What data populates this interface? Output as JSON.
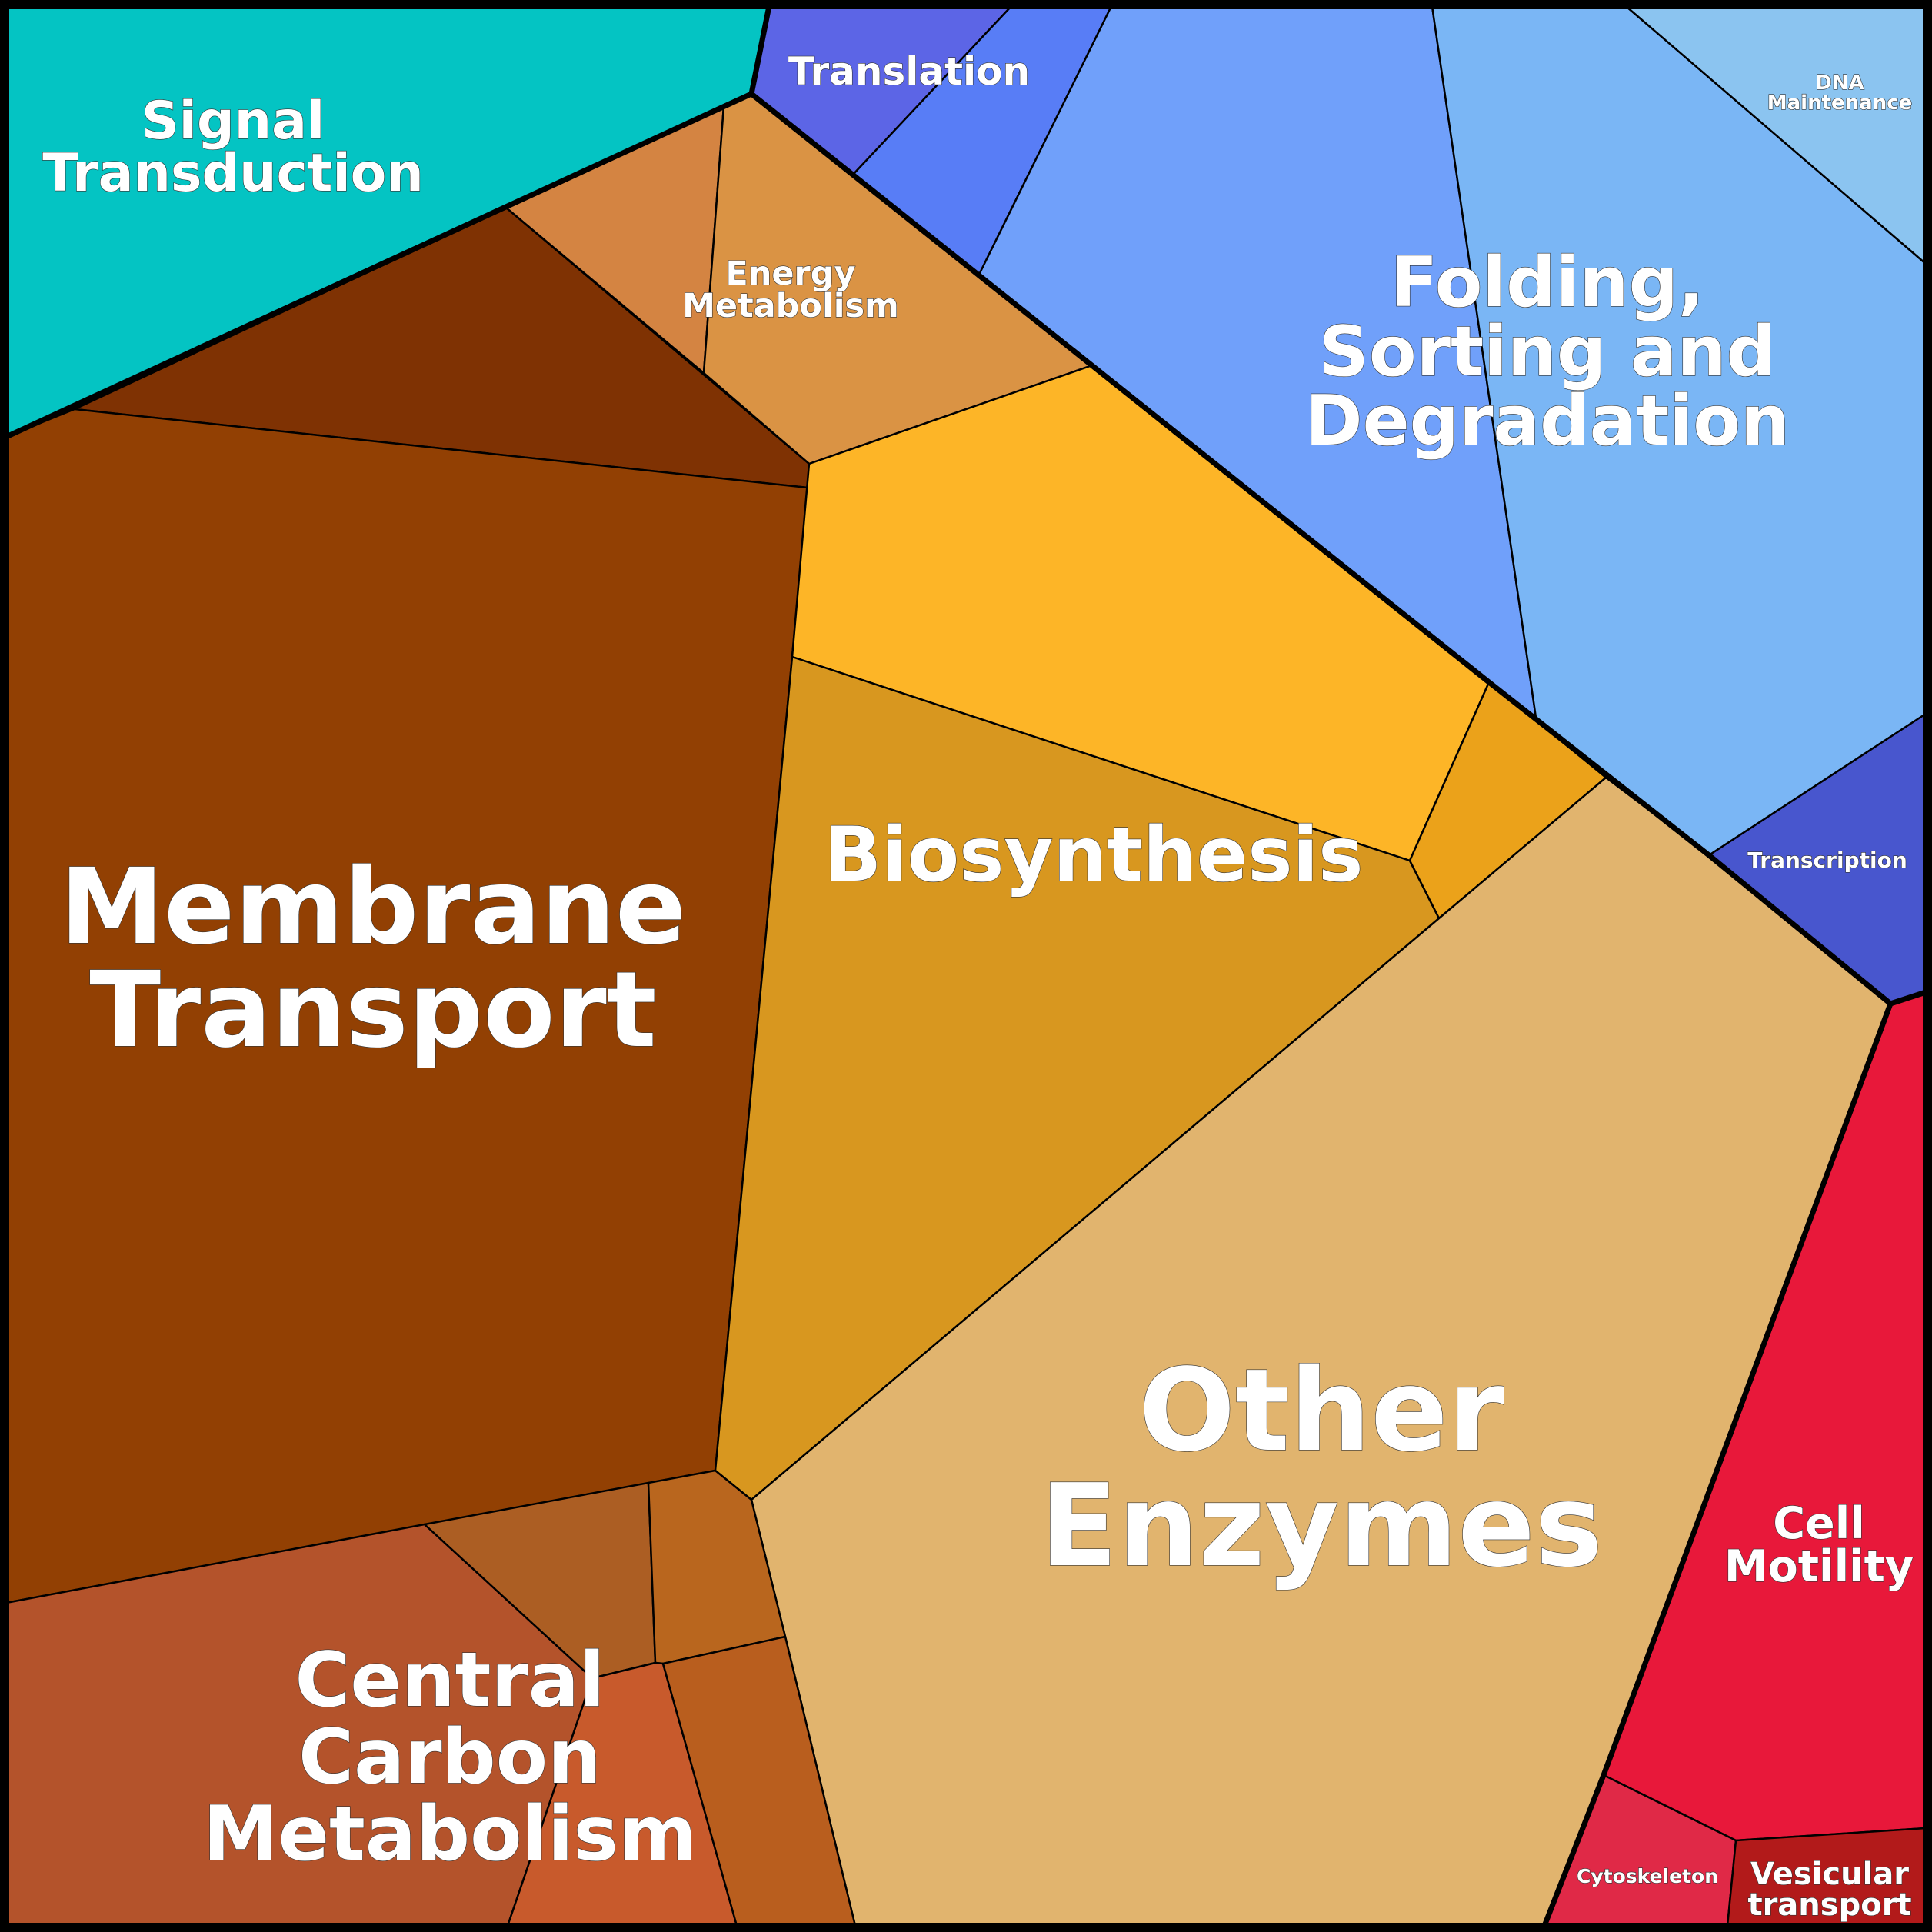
{
  "diagram": {
    "type": "voronoi-treemap",
    "colors": {
      "signal_transduction": "#04C4C3",
      "translation_a": "#5C65E6",
      "translation_b": "#587DF6",
      "folding_a": "#70A0FA",
      "folding_b": "#7AB6F5",
      "dna_maintenance": "#8BC4F0",
      "transcription": "#4856CE",
      "energy_metabolism_a": "#D48442",
      "energy_metabolism_b": "#DA9344",
      "membrane_transport_a": "#7F3203",
      "membrane_transport_b": "#924003",
      "biosynthesis_a": "#FDB527",
      "biosynthesis_b": "#D8971F",
      "biosynthesis_c": "#EBA21A",
      "other_enzymes": "#E1B46E",
      "cell_motility": "#E8183A",
      "cytoskeleton": "#E02947",
      "vesicular_transport": "#B21A1A",
      "central_carbon_a": "#B4532B",
      "central_carbon_b": "#AC5E23",
      "central_carbon_c": "#B9661E",
      "central_carbon_d": "#C85A2C",
      "central_carbon_e": "#B95E1E"
    },
    "labels": {
      "signal_transduction": [
        "Signal",
        "Transduction"
      ],
      "translation": [
        "Translation"
      ],
      "dna_maintenance": [
        "DNA",
        "Maintenance"
      ],
      "energy_metabolism": [
        "Energy",
        "Metabolism"
      ],
      "folding": [
        "Folding,",
        "Sorting and",
        "Degradation"
      ],
      "biosynthesis": [
        "Biosynthesis"
      ],
      "transcription": [
        "Transcription"
      ],
      "membrane_transport": [
        "Membrane",
        "Transport"
      ],
      "other_enzymes": [
        "Other",
        "Enzymes"
      ],
      "cell_motility": [
        "Cell",
        "Motility"
      ],
      "central_carbon": [
        "Central",
        "Carbon",
        "Metabolism"
      ],
      "cytoskeleton": [
        "Cytoskeleton"
      ],
      "vesicular_transport": [
        "Vesicular",
        "transport"
      ]
    }
  }
}
